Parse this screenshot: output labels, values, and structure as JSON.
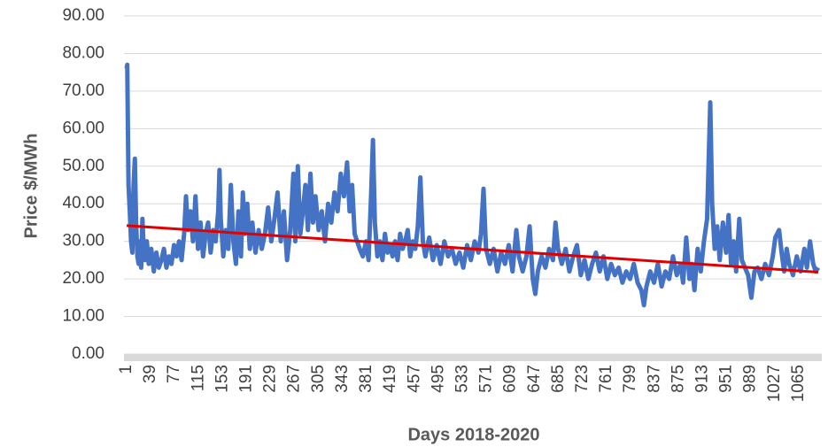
{
  "chart_data": {
    "type": "line",
    "xlabel": "Days 2018-2020",
    "ylabel": "Price $/MWh",
    "xlim": [
      1,
      1096
    ],
    "xticks": [
      1,
      39,
      77,
      115,
      153,
      191,
      229,
      267,
      305,
      343,
      381,
      419,
      457,
      495,
      533,
      571,
      609,
      647,
      685,
      723,
      761,
      799,
      837,
      875,
      913,
      951,
      989,
      1027,
      1065
    ],
    "ylim": [
      0,
      90
    ],
    "yticks": [
      {
        "value": 0,
        "label": "0.00"
      },
      {
        "value": 10,
        "label": "10.00"
      },
      {
        "value": 20,
        "label": "20.00"
      },
      {
        "value": 30,
        "label": "30.00"
      },
      {
        "value": 40,
        "label": "40.00"
      },
      {
        "value": 50,
        "label": "50.00"
      },
      {
        "value": 60,
        "label": "60.00"
      },
      {
        "value": 70,
        "label": "70.00"
      },
      {
        "value": 80,
        "label": "80.00"
      },
      {
        "value": 90,
        "label": "90.00"
      }
    ],
    "grid": true,
    "series": [
      {
        "color": "#4472c4",
        "width": 5,
        "x": [
          1,
          2,
          3,
          4,
          6,
          8,
          10,
          12,
          14,
          16,
          18,
          20,
          22,
          24,
          26,
          28,
          30,
          33,
          36,
          40,
          44,
          48,
          52,
          56,
          60,
          64,
          68,
          72,
          76,
          80,
          84,
          88,
          92,
          95,
          98,
          102,
          106,
          110,
          114,
          118,
          122,
          126,
          130,
          134,
          138,
          142,
          146,
          148,
          150,
          154,
          158,
          162,
          166,
          170,
          174,
          178,
          182,
          185,
          188,
          192,
          196,
          200,
          205,
          210,
          215,
          220,
          225,
          230,
          235,
          240,
          245,
          250,
          255,
          260,
          265,
          268,
          272,
          276,
          280,
          284,
          288,
          292,
          296,
          300,
          305,
          310,
          315,
          320,
          325,
          330,
          335,
          340,
          345,
          350,
          354,
          358,
          362,
          366,
          370,
          375,
          380,
          384,
          388,
          391,
          394,
          398,
          402,
          406,
          410,
          414,
          418,
          422,
          426,
          430,
          434,
          438,
          442,
          446,
          450,
          454,
          458,
          462,
          466,
          470,
          474,
          480,
          486,
          492,
          498,
          504,
          510,
          516,
          522,
          528,
          534,
          540,
          546,
          552,
          558,
          562,
          566,
          570,
          576,
          582,
          588,
          594,
          600,
          606,
          612,
          618,
          622,
          628,
          634,
          639,
          644,
          648,
          652,
          658,
          664,
          670,
          676,
          680,
          684,
          690,
          696,
          702,
          708,
          714,
          720,
          726,
          732,
          738,
          744,
          750,
          756,
          762,
          768,
          774,
          780,
          786,
          792,
          798,
          804,
          810,
          816,
          820,
          824,
          830,
          836,
          842,
          848,
          854,
          860,
          866,
          872,
          878,
          882,
          887,
          892,
          896,
          900,
          905,
          910,
          915,
          920,
          925,
          928,
          932,
          936,
          940,
          945,
          950,
          954,
          958,
          962,
          966,
          971,
          975,
          980,
          985,
          990,
          995,
          1000,
          1006,
          1012,
          1018,
          1024,
          1028,
          1034,
          1038,
          1042,
          1046,
          1050,
          1056,
          1062,
          1068,
          1074,
          1078,
          1083,
          1088,
          1092,
          1096
        ],
        "values": [
          76,
          77,
          60,
          45,
          38,
          30,
          27,
          45,
          52,
          35,
          26,
          24,
          30,
          23,
          36,
          28,
          25,
          30,
          24,
          28,
          22,
          27,
          23,
          25,
          28,
          23,
          26,
          24,
          29,
          26,
          30,
          25,
          32,
          42,
          33,
          38,
          30,
          42,
          28,
          35,
          26,
          32,
          35,
          27,
          33,
          30,
          38,
          49,
          36,
          26,
          33,
          28,
          45,
          30,
          24,
          38,
          26,
          43,
          32,
          40,
          28,
          35,
          27,
          33,
          28,
          32,
          39,
          30,
          36,
          43,
          30,
          38,
          25,
          33,
          48,
          30,
          50,
          32,
          38,
          45,
          33,
          48,
          35,
          42,
          33,
          38,
          30,
          40,
          35,
          43,
          38,
          48,
          42,
          51,
          38,
          45,
          32,
          30,
          28,
          26,
          30,
          25,
          42,
          57,
          35,
          26,
          30,
          25,
          32,
          27,
          29,
          26,
          30,
          25,
          32,
          28,
          30,
          33,
          26,
          30,
          28,
          34,
          47,
          30,
          26,
          31,
          25,
          29,
          24,
          30,
          26,
          28,
          24,
          27,
          23,
          29,
          25,
          30,
          27,
          32,
          44,
          28,
          24,
          28,
          22,
          27,
          24,
          29,
          22,
          33,
          26,
          22,
          26,
          34,
          20,
          16,
          22,
          26,
          23,
          28,
          25,
          35,
          28,
          24,
          28,
          22,
          26,
          29,
          21,
          25,
          20,
          24,
          27,
          22,
          26,
          20,
          24,
          21,
          23,
          19,
          22,
          20,
          24,
          19,
          17,
          13,
          18,
          22,
          19,
          24,
          18,
          22,
          20,
          26,
          21,
          24,
          19,
          31,
          20,
          24,
          17,
          28,
          22,
          30,
          36,
          67,
          40,
          28,
          34,
          25,
          35,
          27,
          37,
          24,
          30,
          22,
          36,
          25,
          23,
          21,
          15,
          22,
          23,
          20,
          24,
          21,
          26,
          31,
          33,
          27,
          22,
          28,
          24,
          21,
          26,
          22,
          28,
          23,
          30,
          24,
          22,
          23
        ]
      },
      {
        "color": "#e00000",
        "width": 3,
        "x": [
          1,
          1096
        ],
        "values": [
          34.2,
          21.8
        ]
      }
    ]
  }
}
